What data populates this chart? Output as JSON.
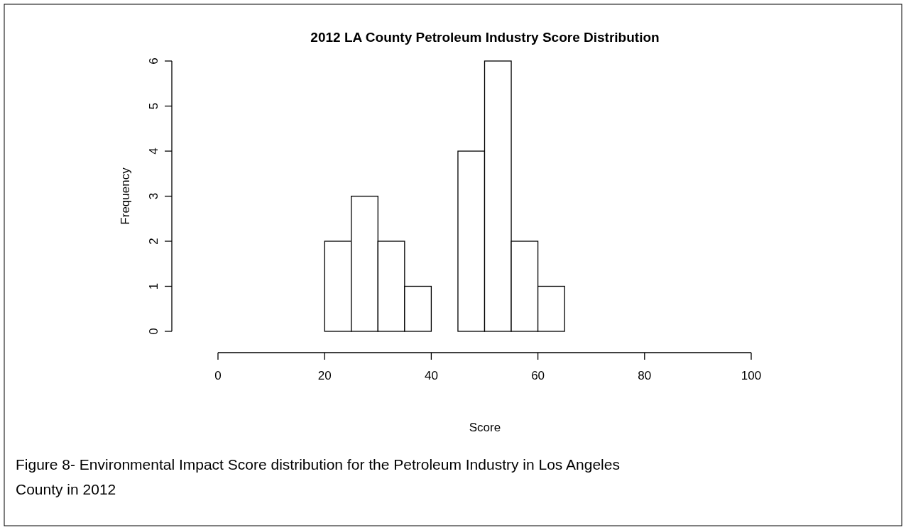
{
  "chart_data": {
    "type": "histogram",
    "title": "2012 LA County Petroleum Industry Score Distribution",
    "xlabel": "Score",
    "ylabel": "Frequency",
    "bins": [
      20,
      25,
      30,
      35,
      40,
      45,
      50,
      55,
      60,
      65
    ],
    "values": [
      2,
      3,
      2,
      1,
      0,
      4,
      6,
      2,
      1
    ],
    "color": "#ffffff",
    "xlim": [
      0,
      100
    ],
    "xticks": [
      0,
      20,
      40,
      60,
      80,
      100
    ],
    "ylim": [
      0,
      6
    ],
    "yticks": [
      0,
      1,
      2,
      3,
      4,
      5,
      6
    ],
    "grid": false,
    "annotations": [
      "Figure 8- Environmental Impact Score distribution for the Petroleum Industry in Los Angeles County in 2012"
    ]
  }
}
